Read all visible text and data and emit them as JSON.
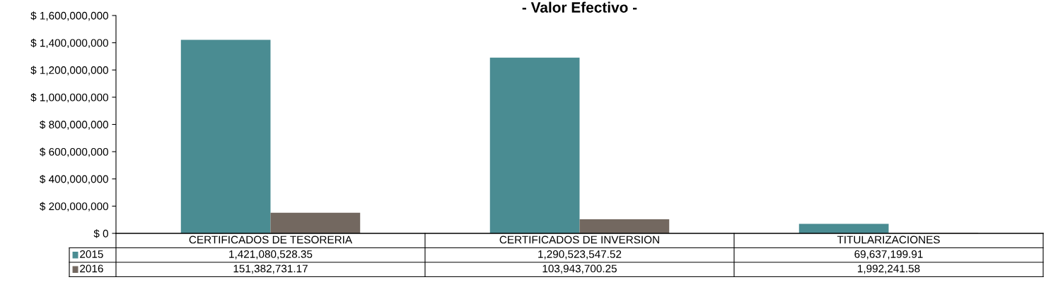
{
  "chart_data": {
    "type": "bar",
    "title": "- Valor Efectivo -",
    "categories": [
      "CERTIFICADOS DE TESORERIA",
      "CERTIFICADOS DE INVERSION",
      "TITULARIZACIONES"
    ],
    "series": [
      {
        "name": "2015",
        "color": "#4a8c92",
        "values": [
          1421080528.35,
          1290523547.52,
          69637199.91
        ],
        "value_labels": [
          "1,421,080,528.35",
          "1,290,523,547.52",
          "69,637,199.91"
        ]
      },
      {
        "name": "2016",
        "color": "#736860",
        "values": [
          151382731.17,
          103943700.25,
          1992241.58
        ],
        "value_labels": [
          "151,382,731.17",
          "103,943,700.25",
          "1,992,241.58"
        ]
      }
    ],
    "ylim": [
      0,
      1600000000
    ],
    "yticks": [
      {
        "value": 0,
        "label": "$ 0"
      },
      {
        "value": 200000000,
        "label": "$ 200,000,000"
      },
      {
        "value": 400000000,
        "label": "$ 400,000,000"
      },
      {
        "value": 600000000,
        "label": "$ 600,000,000"
      },
      {
        "value": 800000000,
        "label": "$ 800,000,000"
      },
      {
        "value": 1000000000,
        "label": "$ 1,000,000,000"
      },
      {
        "value": 1200000000,
        "label": "$ 1,200,000,000"
      },
      {
        "value": 1400000000,
        "label": "$ 1,400,000,000"
      },
      {
        "value": 1600000000,
        "label": "$ 1,600,000,000"
      }
    ],
    "grid": false,
    "legend": "bottom"
  }
}
